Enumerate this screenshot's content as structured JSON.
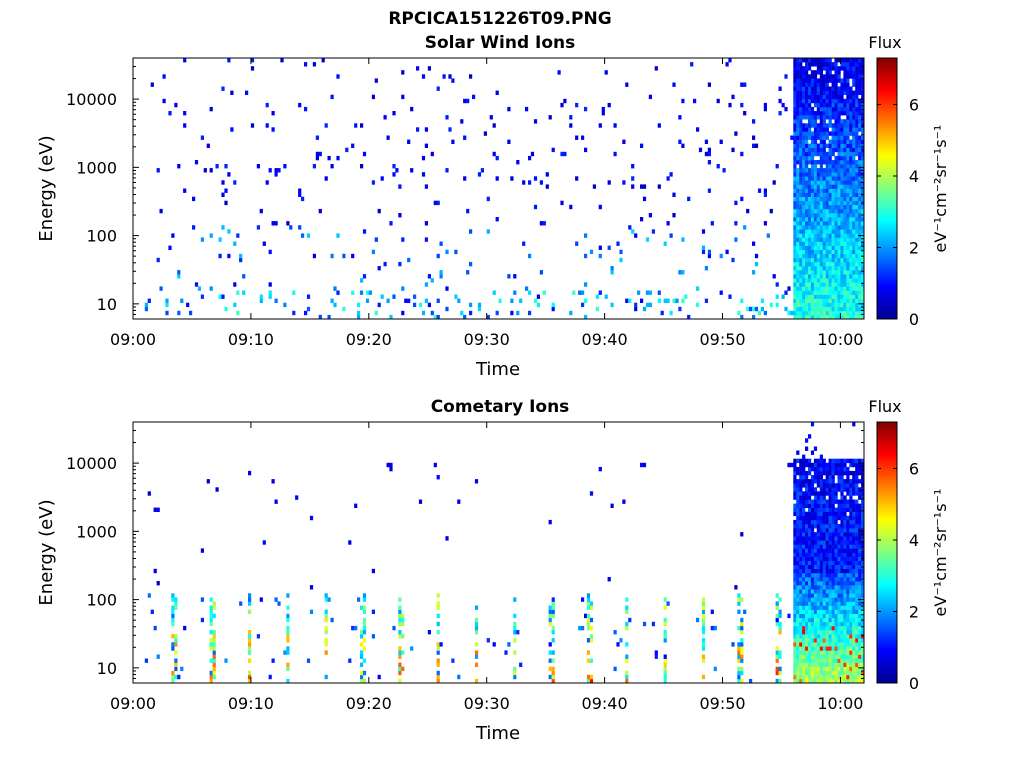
{
  "figure_title": "RPCICA151226T09.PNG",
  "colormap": {
    "name": "jet",
    "stops": [
      "#00008f",
      "#0000ff",
      "#0080ff",
      "#00ffff",
      "#80ff80",
      "#ffff00",
      "#ff8000",
      "#ff0000",
      "#800000"
    ]
  },
  "chart_data": [
    {
      "type": "heatmap",
      "title": "Solar Wind Ions",
      "xlabel": "Time",
      "ylabel": "Energy (eV)",
      "x_tick_labels": [
        "09:00",
        "09:10",
        "09:20",
        "09:30",
        "09:40",
        "09:50",
        "10:00"
      ],
      "x_range_minutes": [
        0,
        62
      ],
      "y_scale": "log",
      "y_range_eV": [
        6,
        40000
      ],
      "y_tick_values": [
        10,
        100,
        1000,
        10000
      ],
      "y_tick_labels": [
        "10",
        "100",
        "1000",
        "10000"
      ],
      "colorbar": {
        "label_top": "Flux",
        "label_side": "eV⁻¹cm⁻²sr⁻¹s⁻¹",
        "range": [
          0,
          7.3
        ],
        "tick_values": [
          0,
          2,
          4,
          6
        ],
        "tick_labels": [
          "0",
          "2",
          "4",
          "6"
        ]
      },
      "regions": [
        {
          "t_start_min": 1,
          "t_end_min": 56,
          "e_min_eV": 150,
          "e_max_eV": 40000,
          "description": "sparse counts",
          "density": 0.1,
          "value_range": [
            0.5,
            1.2
          ]
        },
        {
          "t_start_min": 1,
          "t_end_min": 56,
          "e_min_eV": 15,
          "e_max_eV": 150,
          "description": "sparse counts",
          "density": 0.12,
          "value_range": [
            0.6,
            2.5
          ]
        },
        {
          "t_start_min": 1,
          "t_end_min": 56,
          "e_min_eV": 6,
          "e_max_eV": 15,
          "description": "intermittent low-energy bursts",
          "density": 0.35,
          "value_range": [
            0.8,
            3.2
          ]
        },
        {
          "t_start_min": 56,
          "t_end_min": 62,
          "e_min_eV": 6,
          "e_max_eV": 40000,
          "description": "continuous flux",
          "density": 1.0,
          "value_profile": "low 3.0 at 6 eV, ~1.2 at 1000 eV, ~0.6 at 40000 eV"
        }
      ]
    },
    {
      "type": "heatmap",
      "title": "Cometary Ions",
      "xlabel": "Time",
      "ylabel": "Energy (eV)",
      "x_tick_labels": [
        "09:00",
        "09:10",
        "09:20",
        "09:30",
        "09:40",
        "09:50",
        "10:00"
      ],
      "x_range_minutes": [
        0,
        62
      ],
      "y_scale": "log",
      "y_range_eV": [
        6,
        40000
      ],
      "y_tick_values": [
        10,
        100,
        1000,
        10000
      ],
      "y_tick_labels": [
        "10",
        "100",
        "1000",
        "10000"
      ],
      "colorbar": {
        "label_top": "Flux",
        "label_side": "eV⁻¹cm⁻²sr⁻¹s⁻¹",
        "range": [
          0,
          7.3
        ],
        "tick_values": [
          0,
          2,
          4,
          6
        ],
        "tick_labels": [
          "0",
          "2",
          "4",
          "6"
        ]
      },
      "regions": [
        {
          "t_start_min": 1,
          "t_end_min": 56,
          "e_min_eV": 120,
          "e_max_eV": 12000,
          "description": "very sparse counts",
          "density": 0.02,
          "value_range": [
            0.5,
            1.0
          ]
        },
        {
          "t_start_min": 1,
          "t_end_min": 56,
          "e_min_eV": 6,
          "e_max_eV": 120,
          "description": "periodic bursts every ~3 min",
          "period_min": 3.2,
          "value_range": [
            1.5,
            5.0
          ]
        },
        {
          "t_start_min": 56,
          "t_end_min": 62,
          "e_min_eV": 6,
          "e_max_eV": 11000,
          "description": "continuous flux",
          "density": 1.0,
          "value_profile": "~4 at 10 eV, ~1 above 300 eV"
        },
        {
          "t_start_min": 56,
          "t_end_min": 62,
          "e_min_eV": 11000,
          "e_max_eV": 40000,
          "description": "sparse counts",
          "density": 0.15,
          "value_range": [
            0.6,
            1.2
          ]
        }
      ]
    }
  ]
}
